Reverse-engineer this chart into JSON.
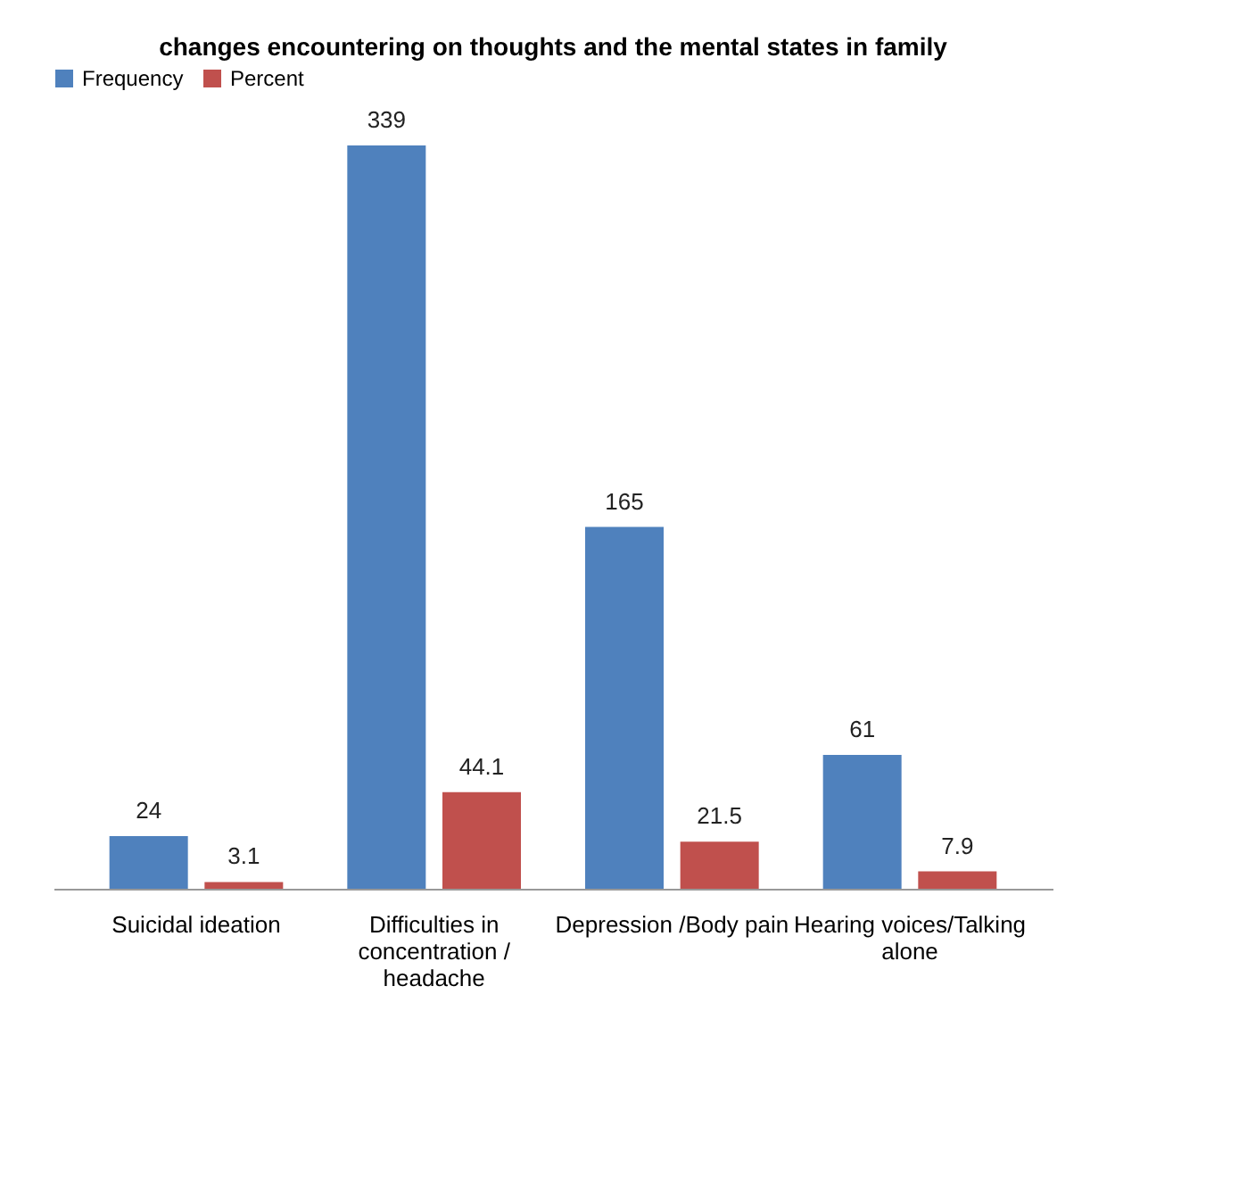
{
  "chart_data": {
    "type": "bar",
    "title": "changes  encountering on thoughts and the mental states in family",
    "categories": [
      "Suicidal ideation",
      "Difficulties in concentration / headache",
      "Depression /Body pain",
      "Hearing voices/Talking alone"
    ],
    "series": [
      {
        "name": "Frequency",
        "color": "#4f81bd",
        "values": [
          24,
          339,
          165,
          61
        ]
      },
      {
        "name": "Percent",
        "color": "#c0504d",
        "values": [
          3.1,
          44.1,
          21.5,
          7.9
        ]
      }
    ],
    "data_labels": true,
    "legend": "top",
    "grid": false
  }
}
